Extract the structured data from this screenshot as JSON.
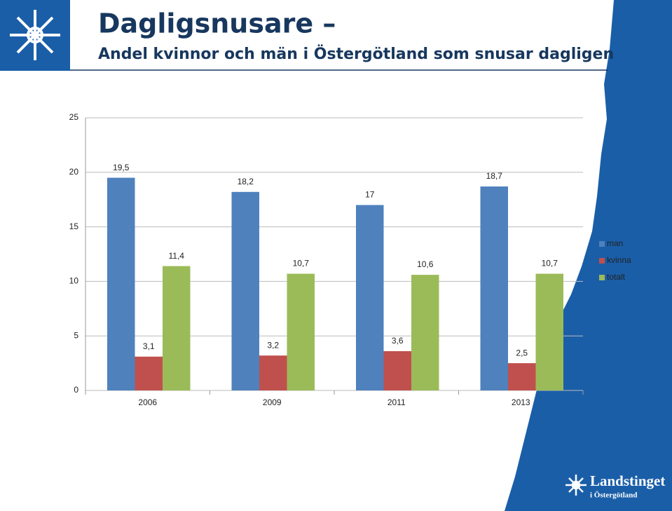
{
  "chart_data": {
    "type": "bar",
    "title": "Dagligsnusare –",
    "subtitle": "Andel kvinnor och män i Östergötland som snusar dagligen",
    "categories": [
      "2006",
      "2009",
      "2011",
      "2013"
    ],
    "series": [
      {
        "name": "man",
        "color": "#4f81bd",
        "values": [
          19.5,
          18.2,
          17,
          18.7
        ],
        "value_labels": [
          "19,5",
          "18,2",
          "17",
          "18,7"
        ]
      },
      {
        "name": "kvinna",
        "color": "#c0504d",
        "values": [
          3.1,
          3.2,
          3.6,
          2.5
        ],
        "value_labels": [
          "3,1",
          "3,2",
          "3,6",
          "2,5"
        ]
      },
      {
        "name": "totalt",
        "color": "#9bbb59",
        "values": [
          11.4,
          10.7,
          10.6,
          10.7
        ],
        "value_labels": [
          "11,4",
          "10,7",
          "10,6",
          "10,7"
        ]
      }
    ],
    "ylim": [
      0,
      25
    ],
    "yticks": [
      0,
      5,
      10,
      15,
      20,
      25
    ],
    "grid": true,
    "legend": "right"
  },
  "logo": {
    "name": "Landstinget",
    "sub": "i Östergötland"
  }
}
